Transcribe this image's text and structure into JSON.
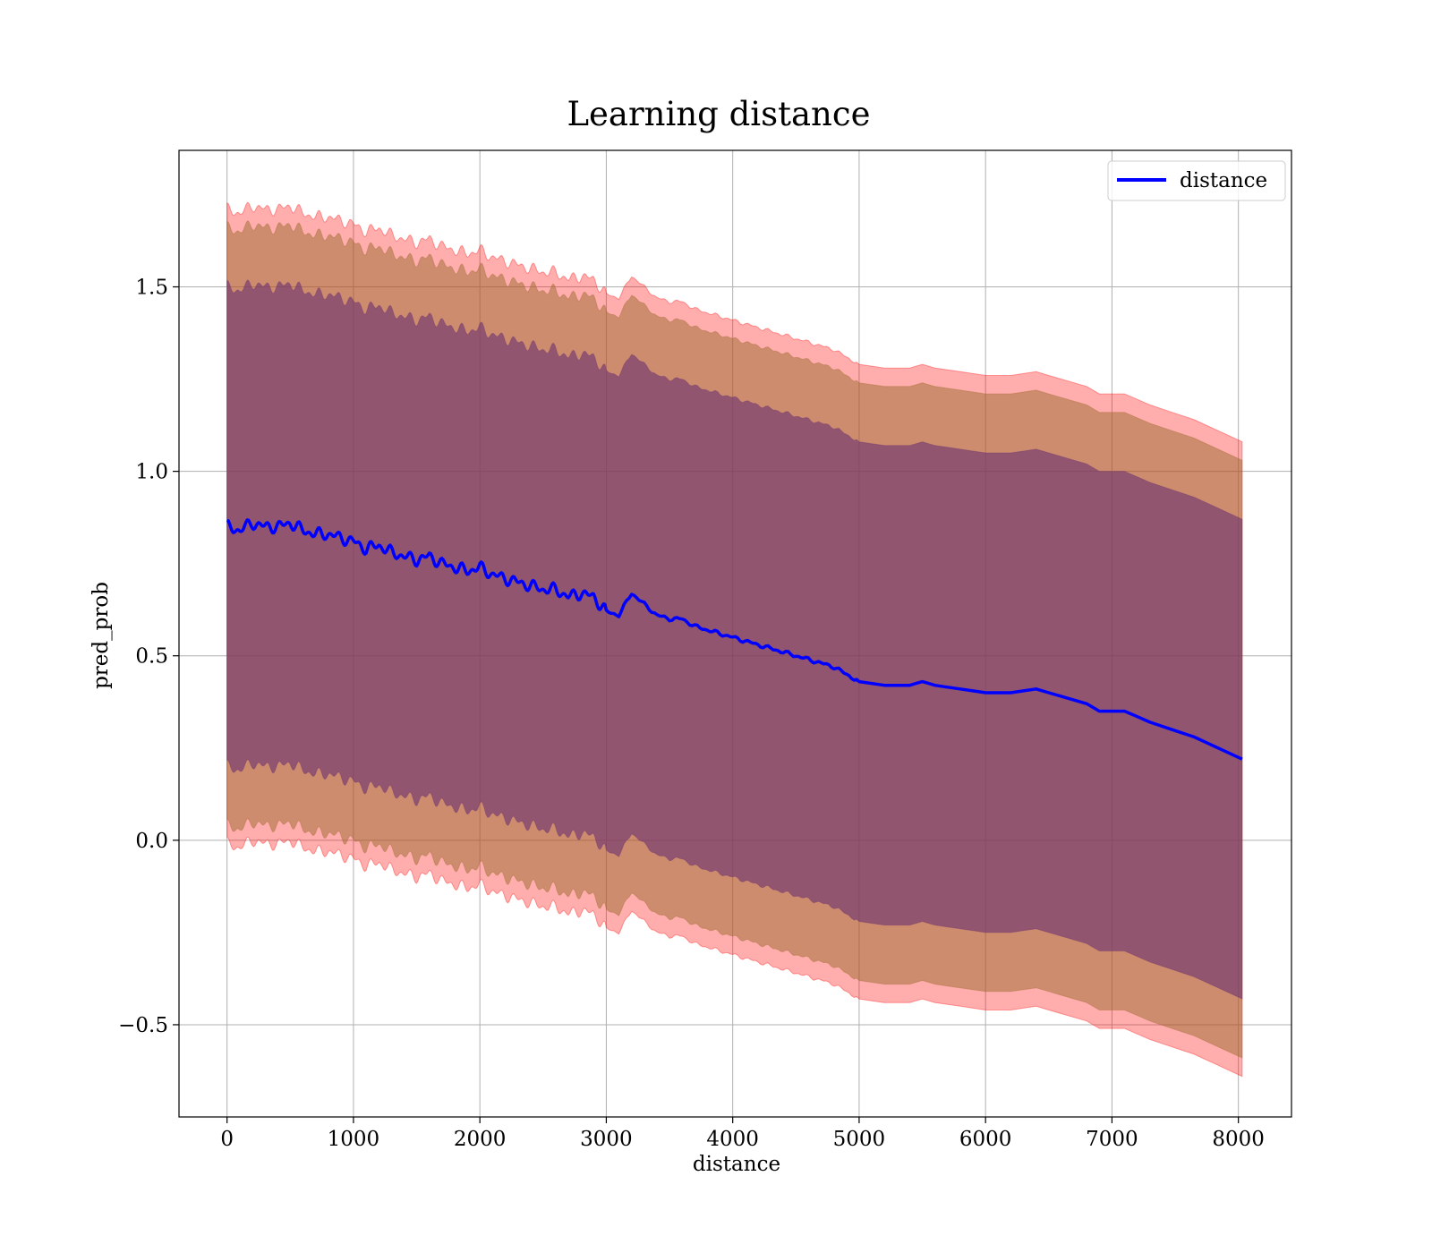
{
  "chart_data": {
    "type": "area",
    "title": "Learning distance",
    "xlabel": "distance",
    "ylabel": "pred_prob",
    "xlim": [
      -380,
      8420
    ],
    "ylim": [
      -0.75,
      1.87
    ],
    "xticks": [
      0,
      1000,
      2000,
      3000,
      4000,
      5000,
      6000,
      7000,
      8000
    ],
    "xtick_labels": [
      "0",
      "1000",
      "2000",
      "3000",
      "4000",
      "5000",
      "6000",
      "7000",
      "8000"
    ],
    "yticks": [
      -0.5,
      0.0,
      0.5,
      1.0,
      1.5
    ],
    "ytick_labels": [
      "−0.5",
      "0.0",
      "0.5",
      "1.0",
      "1.5"
    ],
    "grid": true,
    "legend": {
      "position": "top-right",
      "entries": [
        "distance"
      ]
    },
    "colors": {
      "line": "#0000ff",
      "band_outer": "#ff0000",
      "band_middle": "#9e6b2f",
      "band_inner": "#6b3070"
    },
    "x": [
      0,
      100,
      200,
      300,
      400,
      500,
      600,
      700,
      800,
      900,
      1000,
      1100,
      1200,
      1300,
      1400,
      1500,
      1600,
      1700,
      1800,
      1900,
      2000,
      2100,
      2200,
      2300,
      2400,
      2500,
      2600,
      2700,
      2800,
      2900,
      3000,
      3100,
      3200,
      3300,
      3400,
      3500,
      3600,
      3700,
      3800,
      3900,
      4000,
      4100,
      4200,
      4300,
      4400,
      4500,
      4600,
      4700,
      4800,
      4900,
      5000,
      5200,
      5400,
      5500,
      5600,
      5800,
      6000,
      6200,
      6400,
      6600,
      6800,
      6900,
      7100,
      7300,
      7650,
      8030
    ],
    "series": [
      {
        "name": "distance",
        "values": [
          0.85,
          0.84,
          0.86,
          0.85,
          0.85,
          0.86,
          0.84,
          0.83,
          0.83,
          0.82,
          0.81,
          0.79,
          0.8,
          0.78,
          0.77,
          0.76,
          0.77,
          0.75,
          0.74,
          0.73,
          0.74,
          0.72,
          0.71,
          0.7,
          0.69,
          0.68,
          0.68,
          0.66,
          0.67,
          0.66,
          0.62,
          0.61,
          0.67,
          0.64,
          0.61,
          0.6,
          0.6,
          0.58,
          0.57,
          0.56,
          0.55,
          0.54,
          0.53,
          0.52,
          0.51,
          0.5,
          0.49,
          0.48,
          0.47,
          0.45,
          0.43,
          0.42,
          0.42,
          0.43,
          0.42,
          0.41,
          0.4,
          0.4,
          0.41,
          0.39,
          0.37,
          0.35,
          0.35,
          0.32,
          0.28,
          0.22
        ]
      }
    ],
    "bands": [
      {
        "offset": 0.86
      },
      {
        "offset": 0.81
      },
      {
        "offset": 0.65
      }
    ]
  }
}
